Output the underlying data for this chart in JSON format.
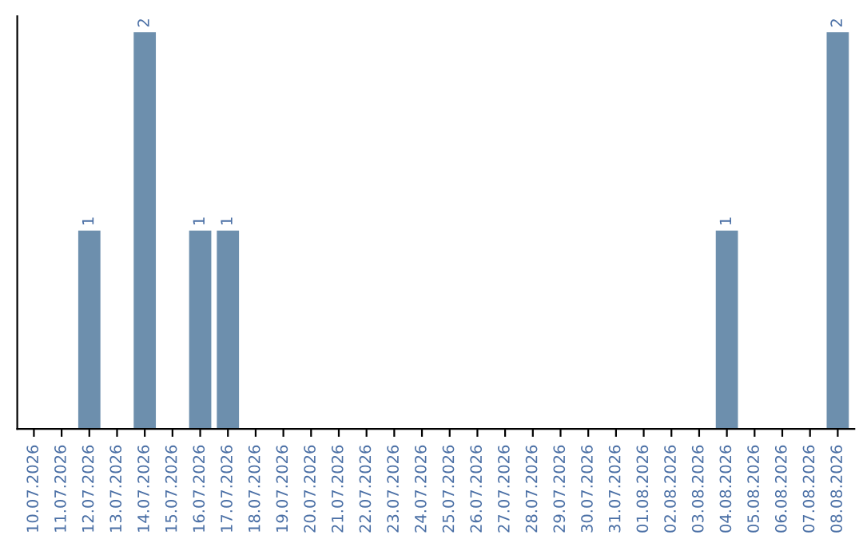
{
  "chart_data": {
    "type": "bar",
    "categories": [
      "10.07.2026",
      "11.07.2026",
      "12.07.2026",
      "13.07.2026",
      "14.07.2026",
      "15.07.2026",
      "16.07.2026",
      "17.07.2026",
      "18.07.2026",
      "19.07.2026",
      "20.07.2026",
      "21.07.2026",
      "22.07.2026",
      "23.07.2026",
      "24.07.2026",
      "25.07.2026",
      "26.07.2026",
      "27.07.2026",
      "28.07.2026",
      "29.07.2026",
      "30.07.2026",
      "31.07.2026",
      "01.08.2026",
      "02.08.2026",
      "03.08.2026",
      "04.08.2026",
      "05.08.2026",
      "06.08.2026",
      "07.08.2026",
      "08.08.2026"
    ],
    "values": [
      0,
      0,
      1,
      0,
      2,
      0,
      1,
      1,
      0,
      0,
      0,
      0,
      0,
      0,
      0,
      0,
      0,
      0,
      0,
      0,
      0,
      0,
      0,
      0,
      0,
      1,
      0,
      0,
      0,
      2
    ],
    "value_labels": [
      null,
      null,
      "1",
      null,
      "2",
      null,
      "1",
      "1",
      null,
      null,
      null,
      null,
      null,
      null,
      null,
      null,
      null,
      null,
      null,
      null,
      null,
      null,
      null,
      null,
      null,
      "1",
      null,
      null,
      null,
      "2"
    ],
    "color": "#6d8fad",
    "tick_labels": "x",
    "grid": false,
    "legend": false
  }
}
